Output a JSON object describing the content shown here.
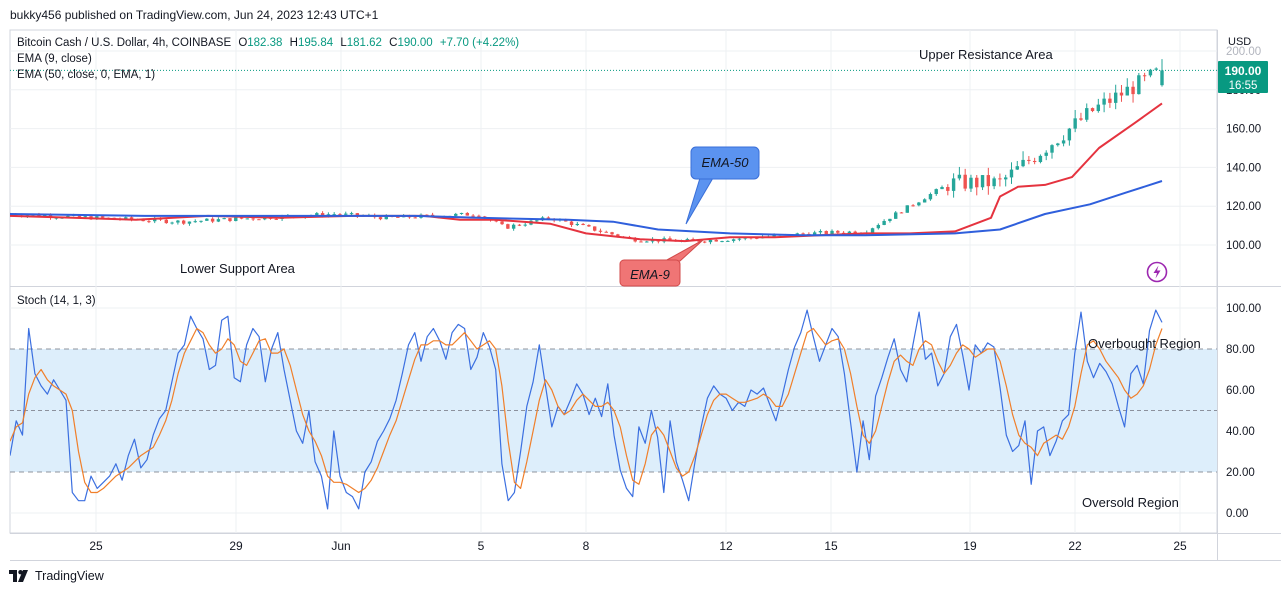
{
  "header": {
    "publisher": "bukky456 published on TradingView.com, Jun 24, 2023 12:43 UTC+1"
  },
  "legend": {
    "symbol": "Bitcoin Cash / U.S. Dollar, 4h, COINBASE",
    "o_label": "O",
    "o": "182.38",
    "h_label": "H",
    "h": "195.84",
    "l_label": "L",
    "l": "181.62",
    "c_label": "C",
    "c": "190.00",
    "change": "+7.70 (+4.22%)",
    "ema9": "EMA (9, close)",
    "ema50": "EMA (50, close, 0, EMA, 1)"
  },
  "price_axis": {
    "currency": "USD",
    "ticks": [
      "200.00",
      "180.00",
      "160.00",
      "140.00",
      "120.00",
      "100.00"
    ],
    "last_price": "190.00",
    "countdown": "16:55"
  },
  "stoch_panel": {
    "title": "Stoch (14, 1, 3)",
    "ticks": [
      "100.00",
      "80.00",
      "60.00",
      "40.00",
      "20.00",
      "0.00"
    ]
  },
  "time_axis": {
    "labels": [
      "25",
      "29",
      "Jun",
      "5",
      "8",
      "12",
      "15",
      "19",
      "22",
      "25"
    ]
  },
  "annotations": {
    "upper": "Upper Resistance Area",
    "lower": "Lower Support Area",
    "ema50": "EMA-50",
    "ema9": "EMA-9",
    "overbought": "Overbought Region",
    "oversold": "Oversold Region"
  },
  "footer": {
    "brand": "TradingView"
  },
  "colors": {
    "up": "#26a69a",
    "down": "#ef5350",
    "ema9": "#e5333f",
    "ema50": "#2f5fdc",
    "k_line": "#3b6fe0",
    "d_line": "#f07f2a",
    "band": "#ddeefb",
    "callout_blue": "#5b93f0",
    "callout_red": "#f07575",
    "last_price_bg": "#089981"
  },
  "chart_data": [
    {
      "type": "candlestick",
      "title": "Bitcoin Cash / U.S. Dollar, 4h, COINBASE",
      "ylabel": "USD",
      "ylim": [
        84,
        206
      ],
      "x_ticks": [
        "25",
        "29",
        "Jun",
        "5",
        "8",
        "12",
        "15",
        "19",
        "22",
        "25"
      ],
      "key_points": [
        {
          "date": "May 22",
          "close": 116
        },
        {
          "date": "May 25",
          "close": 112
        },
        {
          "date": "May 29",
          "close": 116
        },
        {
          "date": "Jun 1",
          "close": 114
        },
        {
          "date": "Jun 5",
          "close": 116
        },
        {
          "date": "Jun 6",
          "close": 109
        },
        {
          "date": "Jun 7",
          "close": 114
        },
        {
          "date": "Jun 10",
          "close": 103
        },
        {
          "date": "Jun 12",
          "close": 102
        },
        {
          "date": "Jun 15",
          "close": 103
        },
        {
          "date": "Jun 19",
          "close": 106
        },
        {
          "date": "Jun 20",
          "close": 107
        },
        {
          "date": "Jun 21",
          "close": 132
        },
        {
          "date": "Jun 22",
          "close": 132
        },
        {
          "date": "Jun 23",
          "close": 170
        },
        {
          "date": "Jun 24",
          "close": 190
        }
      ],
      "last": {
        "open": 182.38,
        "high": 195.84,
        "low": 181.62,
        "close": 190.0,
        "change": "+7.70 (+4.22%)"
      },
      "series": [
        {
          "name": "EMA (9, close)",
          "points": [
            [
              0,
              115
            ],
            [
              0.07,
              114
            ],
            [
              0.14,
              113
            ],
            [
              0.22,
              115
            ],
            [
              0.3,
              114
            ],
            [
              0.38,
              115
            ],
            [
              0.46,
              115
            ],
            [
              0.5,
              113
            ],
            [
              0.54,
              113
            ],
            [
              0.6,
              111
            ],
            [
              0.64,
              106
            ],
            [
              0.7,
              103
            ],
            [
              0.75,
              102
            ],
            [
              0.8,
              104
            ],
            [
              0.85,
              104
            ],
            [
              0.9,
              105
            ],
            [
              0.95,
              106
            ],
            [
              1.0,
              106
            ],
            [
              1.05,
              107
            ],
            [
              1.09,
              114
            ],
            [
              1.1,
              125
            ],
            [
              1.12,
              130
            ],
            [
              1.15,
              131
            ],
            [
              1.18,
              135
            ],
            [
              1.21,
              150
            ],
            [
              1.25,
              163
            ],
            [
              1.28,
              173
            ]
          ]
        },
        {
          "name": "EMA (50, close, 0, EMA, 1)",
          "points": [
            [
              0,
              116
            ],
            [
              0.15,
              115
            ],
            [
              0.3,
              115
            ],
            [
              0.45,
              115
            ],
            [
              0.52,
              114
            ],
            [
              0.62,
              113
            ],
            [
              0.67,
              112
            ],
            [
              0.72,
              108
            ],
            [
              0.8,
              106
            ],
            [
              0.88,
              105
            ],
            [
              0.95,
              105
            ],
            [
              1.05,
              106
            ],
            [
              1.1,
              108
            ],
            [
              1.15,
              116
            ],
            [
              1.2,
              121
            ],
            [
              1.24,
              127
            ],
            [
              1.28,
              133
            ]
          ]
        }
      ]
    },
    {
      "type": "line",
      "title": "Stoch (14, 1, 3)",
      "ylim": [
        -8,
        106
      ],
      "levels": [
        80,
        50,
        20
      ],
      "series": [
        {
          "name": "%K",
          "values": [
            28,
            45,
            38,
            90,
            68,
            62,
            58,
            65,
            60,
            55,
            10,
            6,
            6,
            18,
            12,
            15,
            18,
            24,
            16,
            28,
            36,
            22,
            26,
            38,
            46,
            50,
            64,
            78,
            82,
            96,
            90,
            85,
            70,
            72,
            94,
            96,
            66,
            64,
            82,
            90,
            86,
            64,
            80,
            88,
            70,
            55,
            40,
            34,
            50,
            25,
            18,
            2,
            40,
            18,
            10,
            8,
            2,
            20,
            25,
            35,
            40,
            46,
            55,
            68,
            82,
            88,
            74,
            86,
            90,
            84,
            75,
            88,
            92,
            90,
            70,
            76,
            88,
            81,
            70,
            24,
            6,
            10,
            30,
            52,
            64,
            82,
            62,
            42,
            52,
            48,
            55,
            63,
            58,
            48,
            56,
            47,
            63,
            38,
            21,
            12,
            8,
            42,
            34,
            50,
            37,
            10,
            45,
            25,
            16,
            6,
            25,
            42,
            56,
            62,
            58,
            56,
            50,
            54,
            52,
            60,
            58,
            61,
            53,
            45,
            57,
            70,
            81,
            88,
            99,
            86,
            74,
            82,
            90,
            86,
            68,
            44,
            20,
            45,
            26,
            57,
            66,
            76,
            85,
            70,
            64,
            82,
            98,
            75,
            78,
            62,
            68,
            86,
            92,
            77,
            60,
            82,
            78,
            83,
            81,
            61,
            38,
            30,
            33,
            45,
            14,
            40,
            42,
            28,
            35,
            45,
            48,
            78,
            98,
            74,
            66,
            73,
            69,
            63,
            52,
            42,
            68,
            72,
            63,
            89,
            99,
            93
          ]
        },
        {
          "name": "%D",
          "values": [
            35,
            42,
            44,
            58,
            66,
            70,
            65,
            62,
            60,
            58,
            50,
            30,
            15,
            10,
            10,
            12,
            15,
            18,
            20,
            22,
            25,
            28,
            30,
            32,
            38,
            45,
            55,
            68,
            78,
            84,
            90,
            88,
            82,
            78,
            80,
            85,
            82,
            74,
            72,
            78,
            84,
            85,
            78,
            78,
            80,
            72,
            60,
            48,
            40,
            35,
            28,
            18,
            15,
            15,
            14,
            12,
            10,
            12,
            16,
            22,
            30,
            38,
            45,
            55,
            65,
            75,
            82,
            82,
            84,
            84,
            82,
            82,
            85,
            88,
            84,
            80,
            82,
            84,
            80,
            62,
            35,
            15,
            12,
            25,
            40,
            55,
            65,
            60,
            52,
            48,
            50,
            55,
            58,
            55,
            52,
            52,
            54,
            50,
            42,
            28,
            16,
            14,
            24,
            38,
            42,
            38,
            30,
            22,
            18,
            20,
            28,
            38,
            48,
            55,
            58,
            58,
            56,
            54,
            54,
            55,
            56,
            58,
            56,
            52,
            52,
            58,
            68,
            78,
            88,
            90,
            86,
            82,
            84,
            85,
            80,
            68,
            52,
            38,
            34,
            40,
            52,
            64,
            74,
            77,
            74,
            72,
            80,
            84,
            82,
            74,
            68,
            72,
            78,
            82,
            80,
            76,
            78,
            80,
            80,
            74,
            62,
            48,
            38,
            34,
            32,
            28,
            34,
            36,
            38,
            36,
            42,
            52,
            68,
            82,
            84,
            80,
            74,
            70,
            66,
            60,
            56,
            58,
            62,
            70,
            82,
            90
          ]
        }
      ]
    }
  ]
}
